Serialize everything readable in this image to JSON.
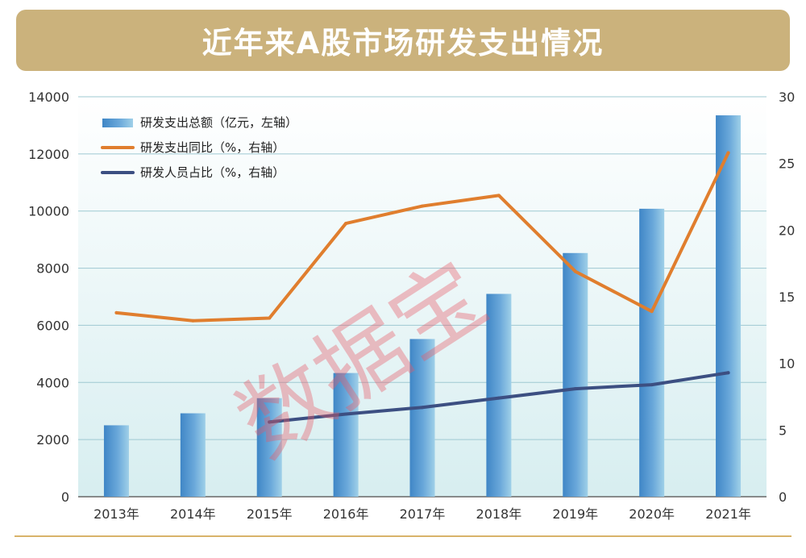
{
  "page": {
    "title": "近年来A股市场研发支出情况"
  },
  "chart_data": {
    "type": "bar+line",
    "title": "近年来A股市场研发支出情况",
    "categories": [
      "2013年",
      "2014年",
      "2015年",
      "2016年",
      "2017年",
      "2018年",
      "2019年",
      "2020年",
      "2021年"
    ],
    "left_axis": {
      "min": 0,
      "max": 14000,
      "ticks": [
        0,
        2000,
        4000,
        6000,
        8000,
        10000,
        12000,
        14000
      ]
    },
    "right_axis": {
      "min": 0,
      "max": 30,
      "ticks": [
        0,
        5,
        10,
        15,
        20,
        25,
        30
      ]
    },
    "series": [
      {
        "name": "研发支出总额（亿元，左轴）",
        "type": "bar",
        "axis": "left",
        "color": "#5b9bd5",
        "values": [
          2500,
          2920,
          3450,
          4330,
          5520,
          7100,
          8530,
          10080,
          13350
        ]
      },
      {
        "name": "研发支出同比（%，右轴）",
        "type": "line",
        "axis": "right",
        "color": "#e07e2e",
        "values": [
          13.8,
          13.2,
          13.4,
          20.5,
          21.8,
          22.6,
          16.9,
          13.9,
          25.8
        ]
      },
      {
        "name": "研发人员占比（%，右轴）",
        "type": "line",
        "axis": "right",
        "color": "#3c4f82",
        "values": [
          null,
          null,
          5.6,
          6.2,
          6.7,
          7.4,
          8.1,
          8.4,
          9.3
        ]
      }
    ],
    "watermark": "数据宝"
  }
}
